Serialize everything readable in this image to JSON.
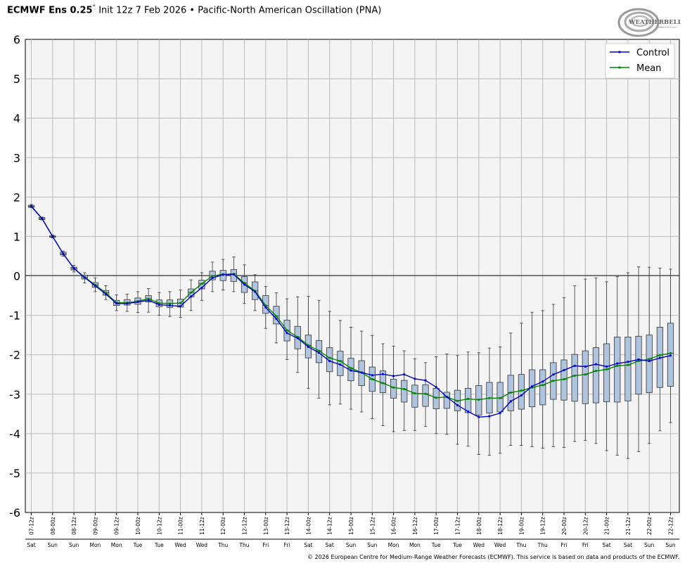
{
  "header": {
    "model": "ECMWF Ens 0.25",
    "degree": "°",
    "init": "Init 12z 7 Feb 2026",
    "bullet": "•",
    "index": "Pacific-North American Oscillation (PNA)"
  },
  "logo": {
    "text": "WEATHERBELL",
    "sub": "ANALYTICS LLC"
  },
  "footer": {
    "copyright": "© 2026 European Centre for Medium-Range Weather Forecasts (ECMWF). This service is based on data and products of the ECMWF."
  },
  "colors": {
    "control": "#0000cc",
    "mean": "#008800",
    "box_fill": "#b0c4de",
    "box_stroke": "#333333",
    "plot_bg": "#f4f4f4",
    "grid": "#bbbbbb",
    "zero_line": "#000000"
  },
  "chart_data": {
    "type": "line",
    "ylim": [
      -6,
      6
    ],
    "yticks": [
      6,
      5,
      4,
      3,
      2,
      1,
      0,
      -1,
      -2,
      -3,
      -4,
      -5,
      -6
    ],
    "grid": true,
    "legend": "top-right",
    "x_tick_labels": [
      "07-12z",
      "08-00z",
      "08-12z",
      "09-00z",
      "09-12z",
      "10-00z",
      "10-12z",
      "11-00z",
      "11-12z",
      "12-00z",
      "12-12z",
      "13-00z",
      "13-12z",
      "14-00z",
      "14-12z",
      "15-00z",
      "15-12z",
      "16-00z",
      "16-12z",
      "17-00z",
      "17-12z",
      "18-00z",
      "18-12z",
      "19-00z",
      "19-12z",
      "20-00z",
      "20-12z",
      "21-00z",
      "21-12z",
      "22-00z",
      "22-12z"
    ],
    "x_day_labels": [
      "Sat",
      "Sun",
      "Sun",
      "Mon",
      "Mon",
      "Tue",
      "Tue",
      "Wed",
      "Wed",
      "Thu",
      "Thu",
      "Fri",
      "Fri",
      "Sat",
      "Sat",
      "Sun",
      "Sun",
      "Mon",
      "Mon",
      "Tue",
      "Tue",
      "Wed",
      "Wed",
      "Thu",
      "Thu",
      "Fri",
      "Fri",
      "Sat",
      "Sat",
      "Sun",
      "Sun"
    ],
    "x": [
      "07-12z",
      "07-18z",
      "08-00z",
      "08-06z",
      "08-12z",
      "08-18z",
      "09-00z",
      "09-06z",
      "09-12z",
      "09-18z",
      "10-00z",
      "10-06z",
      "10-12z",
      "10-18z",
      "11-00z",
      "11-06z",
      "11-12z",
      "11-18z",
      "12-00z",
      "12-06z",
      "12-12z",
      "12-18z",
      "13-00z",
      "13-06z",
      "13-12z",
      "13-18z",
      "14-00z",
      "14-06z",
      "14-12z",
      "14-18z",
      "15-00z",
      "15-06z",
      "15-12z",
      "15-18z",
      "16-00z",
      "16-06z",
      "16-12z",
      "16-18z",
      "17-00z",
      "17-06z",
      "17-12z",
      "17-18z",
      "18-00z",
      "18-06z",
      "18-12z",
      "18-18z",
      "19-00z",
      "19-06z",
      "19-12z",
      "19-18z",
      "20-00z",
      "20-06z",
      "20-12z",
      "20-18z",
      "21-00z",
      "21-06z",
      "21-12z",
      "21-18z",
      "22-00z",
      "22-06z",
      "22-12z"
    ],
    "series": [
      {
        "name": "Control",
        "values": [
          1.77,
          1.46,
          1.0,
          0.56,
          0.19,
          -0.04,
          -0.25,
          -0.46,
          -0.7,
          -0.7,
          -0.66,
          -0.62,
          -0.73,
          -0.75,
          -0.77,
          -0.52,
          -0.3,
          -0.05,
          0.03,
          0.04,
          -0.22,
          -0.4,
          -0.8,
          -1.09,
          -1.45,
          -1.58,
          -1.8,
          -1.95,
          -2.16,
          -2.25,
          -2.4,
          -2.45,
          -2.52,
          -2.49,
          -2.54,
          -2.5,
          -2.61,
          -2.65,
          -2.82,
          -3.07,
          -3.28,
          -3.44,
          -3.58,
          -3.56,
          -3.48,
          -3.18,
          -3.03,
          -2.8,
          -2.68,
          -2.5,
          -2.39,
          -2.28,
          -2.3,
          -2.24,
          -2.3,
          -2.22,
          -2.18,
          -2.12,
          -2.16,
          -2.08,
          -2.02
        ]
      },
      {
        "name": "Mean",
        "values": [
          1.76,
          1.45,
          1.0,
          0.56,
          0.19,
          -0.03,
          -0.23,
          -0.43,
          -0.68,
          -0.68,
          -0.64,
          -0.58,
          -0.69,
          -0.7,
          -0.69,
          -0.42,
          -0.2,
          0.0,
          0.04,
          0.05,
          -0.18,
          -0.38,
          -0.75,
          -1.02,
          -1.38,
          -1.55,
          -1.76,
          -1.9,
          -2.08,
          -2.16,
          -2.34,
          -2.45,
          -2.62,
          -2.72,
          -2.83,
          -2.87,
          -2.98,
          -2.99,
          -3.09,
          -3.07,
          -3.17,
          -3.12,
          -3.14,
          -3.1,
          -3.1,
          -2.96,
          -2.91,
          -2.83,
          -2.77,
          -2.66,
          -2.62,
          -2.53,
          -2.5,
          -2.41,
          -2.37,
          -2.28,
          -2.26,
          -2.16,
          -2.11,
          -2.01,
          -1.96
        ]
      }
    ],
    "boxes": [
      {
        "min": 1.73,
        "q1": 1.74,
        "median": 1.76,
        "q3": 1.79,
        "max": 1.81
      },
      {
        "min": 1.42,
        "q1": 1.43,
        "median": 1.45,
        "q3": 1.48,
        "max": 1.49
      },
      {
        "min": 0.96,
        "q1": 0.98,
        "median": 1.0,
        "q3": 1.02,
        "max": 1.04
      },
      {
        "min": 0.5,
        "q1": 0.53,
        "median": 0.56,
        "q3": 0.6,
        "max": 0.63
      },
      {
        "min": 0.1,
        "q1": 0.15,
        "median": 0.19,
        "q3": 0.22,
        "max": 0.27
      },
      {
        "min": -0.18,
        "q1": -0.08,
        "median": -0.03,
        "q3": 0.02,
        "max": 0.08
      },
      {
        "min": -0.4,
        "q1": -0.29,
        "median": -0.23,
        "q3": -0.17,
        "max": -0.05
      },
      {
        "min": -0.6,
        "q1": -0.49,
        "median": -0.43,
        "q3": -0.37,
        "max": -0.25
      },
      {
        "min": -0.88,
        "q1": -0.75,
        "median": -0.68,
        "q3": -0.62,
        "max": -0.48
      },
      {
        "min": -0.9,
        "q1": -0.74,
        "median": -0.68,
        "q3": -0.6,
        "max": -0.46
      },
      {
        "min": -0.93,
        "q1": -0.72,
        "median": -0.64,
        "q3": -0.56,
        "max": -0.4
      },
      {
        "min": -0.92,
        "q1": -0.66,
        "median": -0.58,
        "q3": -0.5,
        "max": -0.32
      },
      {
        "min": -1.0,
        "q1": -0.78,
        "median": -0.69,
        "q3": -0.61,
        "max": -0.42
      },
      {
        "min": -1.03,
        "q1": -0.8,
        "median": -0.7,
        "q3": -0.61,
        "max": -0.4
      },
      {
        "min": -1.05,
        "q1": -0.79,
        "median": -0.69,
        "q3": -0.59,
        "max": -0.36
      },
      {
        "min": -0.88,
        "q1": -0.53,
        "median": -0.42,
        "q3": -0.33,
        "max": -0.1
      },
      {
        "min": -0.62,
        "q1": -0.33,
        "median": -0.2,
        "q3": -0.11,
        "max": 0.08
      },
      {
        "min": -0.4,
        "q1": -0.1,
        "median": 0.0,
        "q3": 0.12,
        "max": 0.35
      },
      {
        "min": -0.36,
        "q1": -0.12,
        "median": 0.04,
        "q3": 0.14,
        "max": 0.42
      },
      {
        "min": -0.4,
        "q1": -0.14,
        "median": 0.05,
        "q3": 0.16,
        "max": 0.48
      },
      {
        "min": -0.7,
        "q1": -0.42,
        "median": -0.18,
        "q3": -0.02,
        "max": 0.28
      },
      {
        "min": -0.88,
        "q1": -0.6,
        "median": -0.38,
        "q3": -0.15,
        "max": 0.03
      },
      {
        "min": -1.33,
        "q1": -0.95,
        "median": -0.75,
        "q3": -0.5,
        "max": -0.27
      },
      {
        "min": -1.7,
        "q1": -1.22,
        "median": -1.02,
        "q3": -0.77,
        "max": -0.43
      },
      {
        "min": -2.12,
        "q1": -1.65,
        "median": -1.38,
        "q3": -1.12,
        "max": -0.58
      },
      {
        "min": -2.45,
        "q1": -1.85,
        "median": -1.55,
        "q3": -1.28,
        "max": -0.53
      },
      {
        "min": -2.85,
        "q1": -2.08,
        "median": -1.76,
        "q3": -1.5,
        "max": -0.52
      },
      {
        "min": -3.1,
        "q1": -2.2,
        "median": -1.9,
        "q3": -1.64,
        "max": -0.62
      },
      {
        "min": -3.27,
        "q1": -2.43,
        "median": -2.08,
        "q3": -1.82,
        "max": -0.9
      },
      {
        "min": -3.25,
        "q1": -2.53,
        "median": -2.16,
        "q3": -1.91,
        "max": -1.13
      },
      {
        "min": -3.38,
        "q1": -2.66,
        "median": -2.34,
        "q3": -2.09,
        "max": -1.3
      },
      {
        "min": -3.45,
        "q1": -2.78,
        "median": -2.45,
        "q3": -2.15,
        "max": -1.4
      },
      {
        "min": -3.62,
        "q1": -2.93,
        "median": -2.62,
        "q3": -2.31,
        "max": -1.51
      },
      {
        "min": -3.8,
        "q1": -2.96,
        "median": -2.72,
        "q3": -2.41,
        "max": -1.72
      },
      {
        "min": -3.95,
        "q1": -3.1,
        "median": -2.83,
        "q3": -2.62,
        "max": -1.78
      },
      {
        "min": -3.92,
        "q1": -3.2,
        "median": -2.87,
        "q3": -2.65,
        "max": -1.9
      },
      {
        "min": -3.92,
        "q1": -3.33,
        "median": -2.98,
        "q3": -2.77,
        "max": -2.1
      },
      {
        "min": -3.82,
        "q1": -3.31,
        "median": -2.99,
        "q3": -2.76,
        "max": -2.2
      },
      {
        "min": -4.0,
        "q1": -3.37,
        "median": -3.09,
        "q3": -2.85,
        "max": -2.05
      },
      {
        "min": -4.02,
        "q1": -3.36,
        "median": -3.07,
        "q3": -2.95,
        "max": -1.98
      },
      {
        "min": -4.27,
        "q1": -3.42,
        "median": -3.17,
        "q3": -2.9,
        "max": -2.02
      },
      {
        "min": -4.32,
        "q1": -3.47,
        "median": -3.12,
        "q3": -2.85,
        "max": -1.93
      },
      {
        "min": -4.53,
        "q1": -3.53,
        "median": -3.14,
        "q3": -2.78,
        "max": -1.95
      },
      {
        "min": -4.55,
        "q1": -3.48,
        "median": -3.1,
        "q3": -2.7,
        "max": -1.83
      },
      {
        "min": -4.5,
        "q1": -3.45,
        "median": -3.1,
        "q3": -2.7,
        "max": -1.8
      },
      {
        "min": -4.3,
        "q1": -3.42,
        "median": -2.96,
        "q3": -2.52,
        "max": -1.45
      },
      {
        "min": -4.3,
        "q1": -3.38,
        "median": -2.91,
        "q3": -2.5,
        "max": -1.2
      },
      {
        "min": -4.33,
        "q1": -3.32,
        "median": -2.83,
        "q3": -2.38,
        "max": -0.92
      },
      {
        "min": -4.37,
        "q1": -3.27,
        "median": -2.77,
        "q3": -2.38,
        "max": -0.88
      },
      {
        "min": -4.33,
        "q1": -3.13,
        "median": -2.66,
        "q3": -2.2,
        "max": -0.72
      },
      {
        "min": -4.35,
        "q1": -3.15,
        "median": -2.62,
        "q3": -2.13,
        "max": -0.55
      },
      {
        "min": -4.2,
        "q1": -3.18,
        "median": -2.53,
        "q3": -1.99,
        "max": -0.25
      },
      {
        "min": -4.17,
        "q1": -3.24,
        "median": -2.5,
        "q3": -1.9,
        "max": -0.08
      },
      {
        "min": -4.25,
        "q1": -3.22,
        "median": -2.41,
        "q3": -1.82,
        "max": -0.05
      },
      {
        "min": -4.43,
        "q1": -3.19,
        "median": -2.37,
        "q3": -1.72,
        "max": -0.15
      },
      {
        "min": -4.55,
        "q1": -3.2,
        "median": -2.28,
        "q3": -1.55,
        "max": -0.02
      },
      {
        "min": -4.63,
        "q1": -3.17,
        "median": -2.26,
        "q3": -1.55,
        "max": 0.08
      },
      {
        "min": -4.46,
        "q1": -3.0,
        "median": -2.16,
        "q3": -1.53,
        "max": 0.23
      },
      {
        "min": -4.25,
        "q1": -2.96,
        "median": -2.11,
        "q3": -1.5,
        "max": 0.22
      },
      {
        "min": -3.93,
        "q1": -2.83,
        "median": -2.01,
        "q3": -1.3,
        "max": 0.2
      },
      {
        "min": -3.72,
        "q1": -2.8,
        "median": -1.96,
        "q3": -1.2,
        "max": 0.17
      }
    ]
  }
}
